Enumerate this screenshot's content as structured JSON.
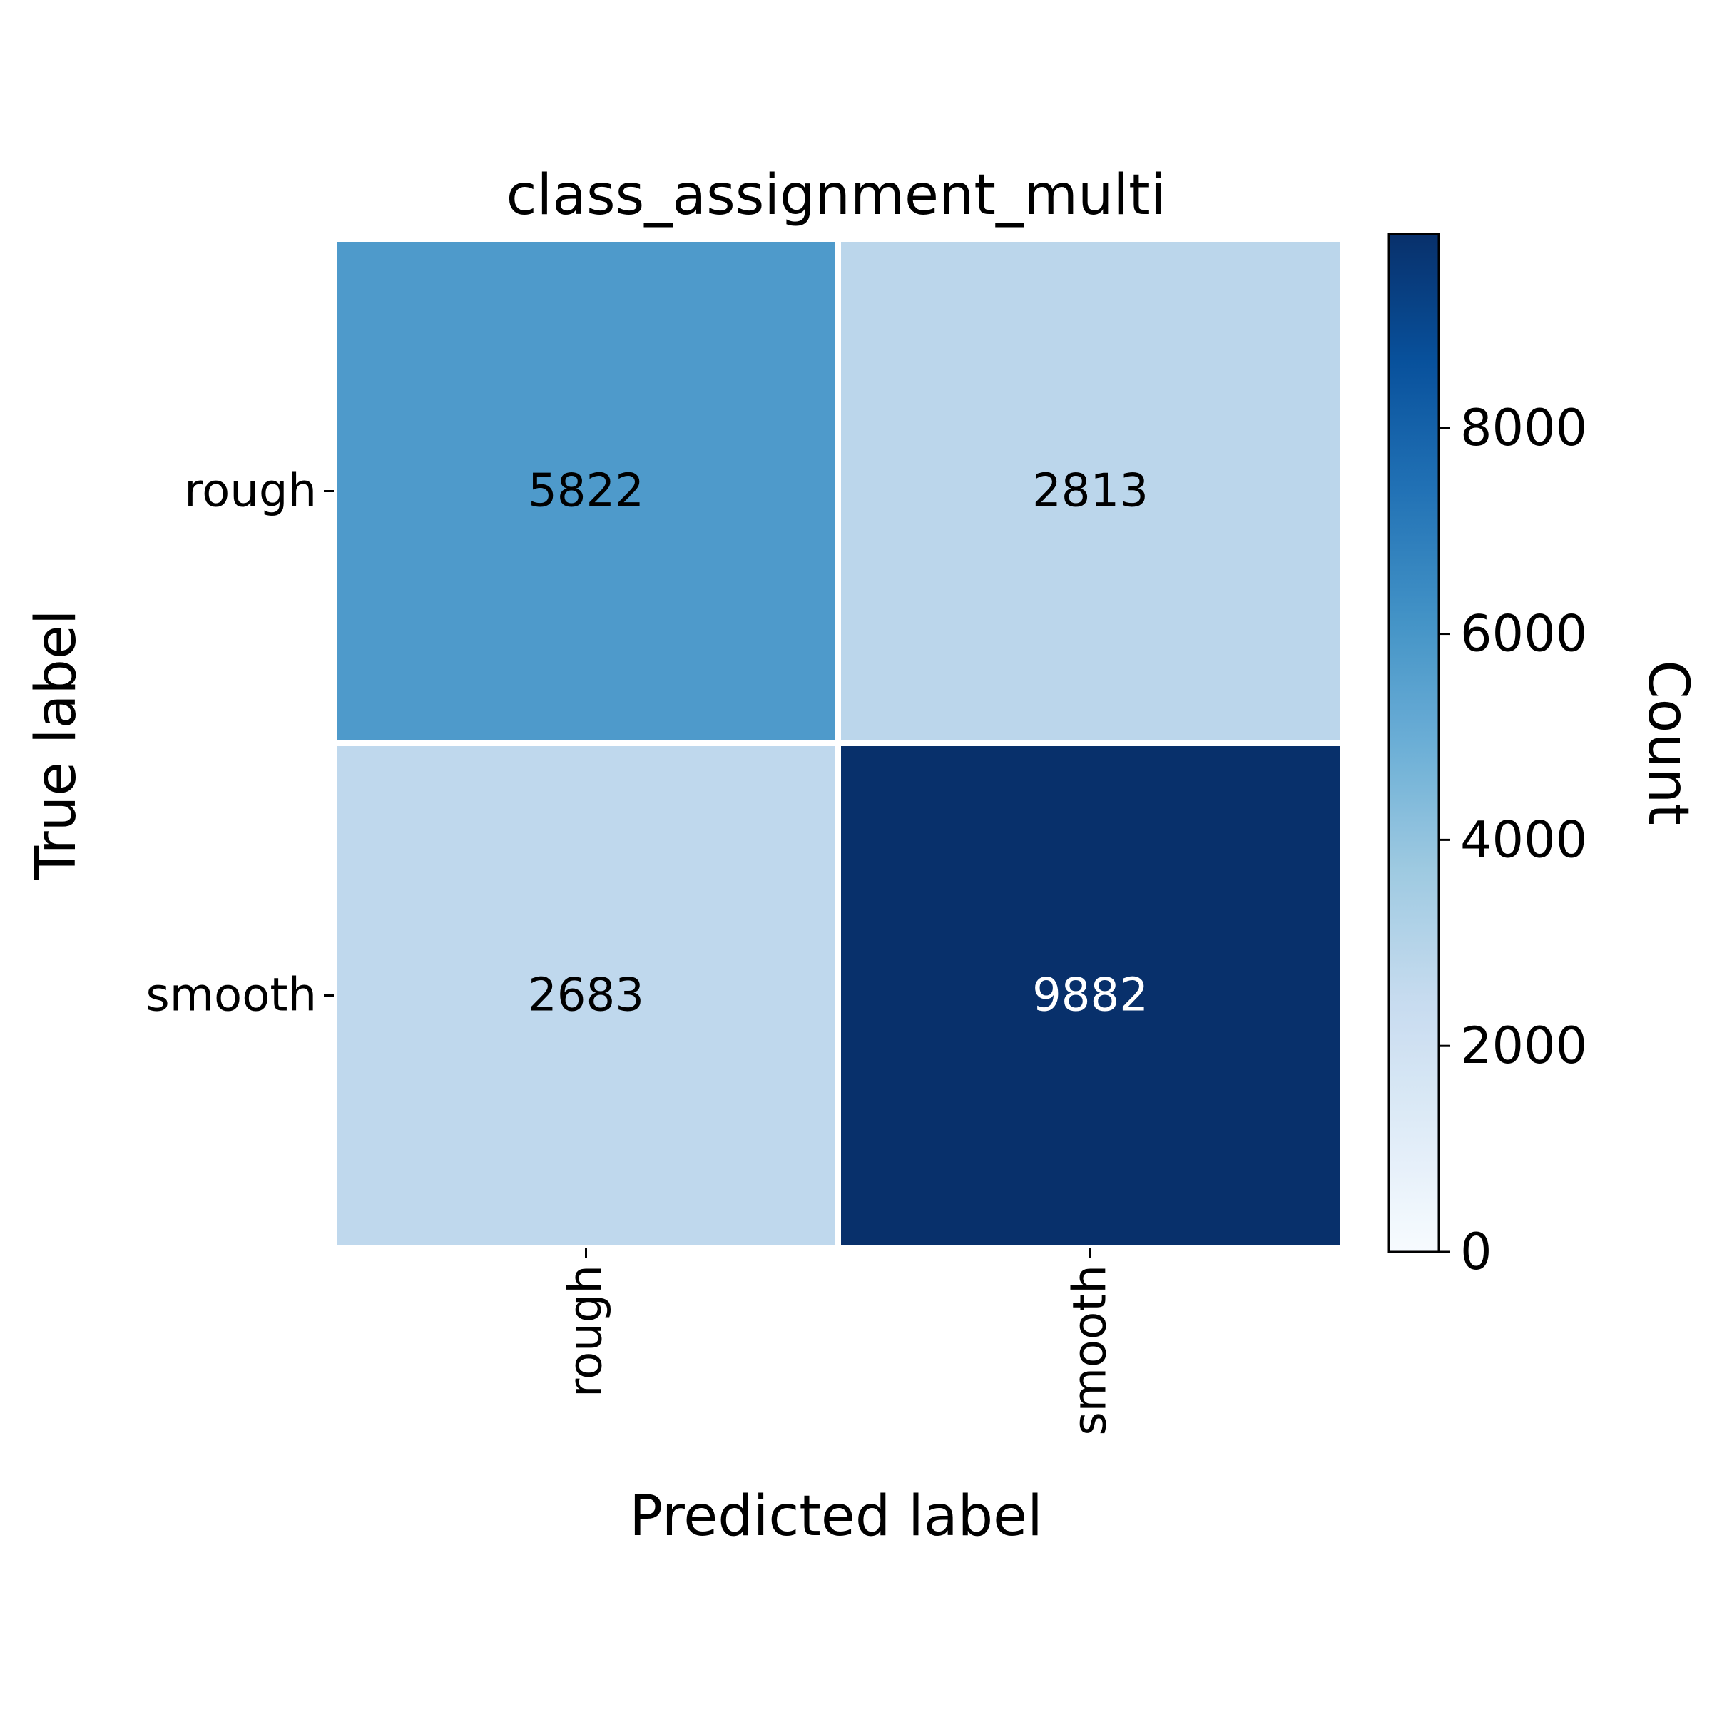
{
  "chart_data": {
    "type": "heatmap",
    "title": "class_assignment_multi",
    "xlabel": "Predicted label",
    "ylabel": "True label",
    "x_categories": [
      "rough",
      "smooth"
    ],
    "y_categories": [
      "rough",
      "smooth"
    ],
    "values": [
      [
        5822,
        2813
      ],
      [
        2683,
        9882
      ]
    ],
    "cell_labels": [
      [
        "5822",
        "2813"
      ],
      [
        "2683",
        "9882"
      ]
    ],
    "colormap": "Blues",
    "colormap_stops": [
      "#f7fbff",
      "#deebf7",
      "#c6dbef",
      "#9ecae1",
      "#6baed6",
      "#4292c6",
      "#2171b5",
      "#08519c",
      "#08306b"
    ],
    "colorbar": {
      "label": "Count",
      "range": [
        0,
        9882
      ],
      "ticks": [
        0,
        2000,
        4000,
        6000,
        8000
      ],
      "tick_labels": [
        "0",
        "2000",
        "4000",
        "6000",
        "8000"
      ]
    },
    "grid": false,
    "annotation_text_colors": {
      "dark": "#000000",
      "light": "#ffffff"
    }
  }
}
